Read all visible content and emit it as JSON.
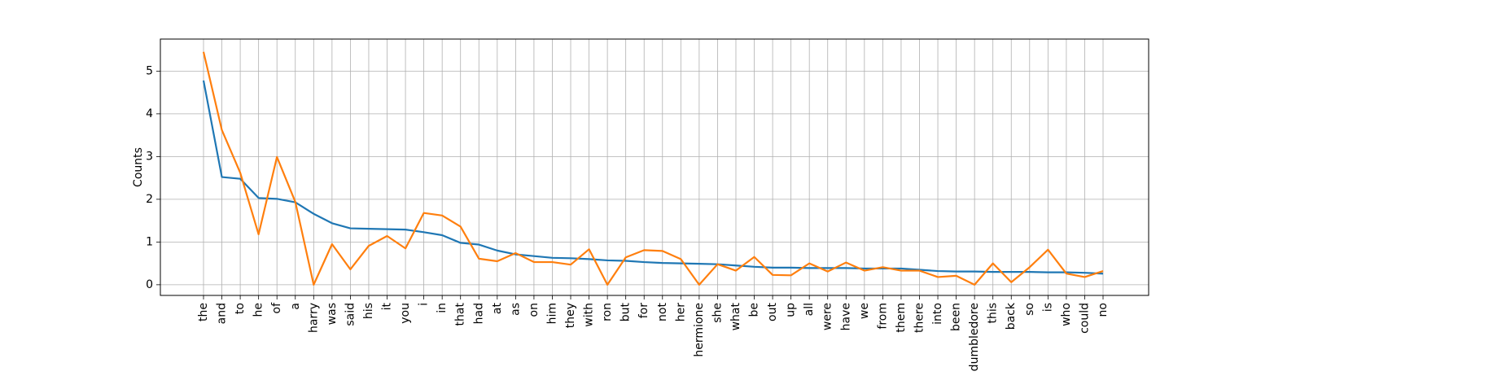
{
  "chart_data": {
    "type": "line",
    "title": "",
    "xlabel": "",
    "ylabel": "Counts",
    "ylim": [
      -0.25,
      5.75
    ],
    "yticks": [
      0,
      1,
      2,
      3,
      4,
      5
    ],
    "grid": true,
    "categories": [
      "the",
      "and",
      "to",
      "he",
      "of",
      "a",
      "harry",
      "was",
      "said",
      "his",
      "it",
      "you",
      "i",
      "in",
      "that",
      "had",
      "at",
      "as",
      "on",
      "him",
      "they",
      "with",
      "ron",
      "but",
      "for",
      "not",
      "her",
      "hermione",
      "she",
      "what",
      "be",
      "out",
      "up",
      "all",
      "were",
      "have",
      "we",
      "from",
      "them",
      "there",
      "into",
      "been",
      "dumbledore",
      "this",
      "back",
      "so",
      "is",
      "who",
      "could",
      "no"
    ],
    "series": [
      {
        "color": "#1f77b4",
        "values": [
          4.78,
          2.52,
          2.48,
          2.03,
          2.01,
          1.93,
          1.66,
          1.44,
          1.32,
          1.31,
          1.3,
          1.29,
          1.23,
          1.16,
          0.98,
          0.94,
          0.8,
          0.71,
          0.67,
          0.63,
          0.62,
          0.6,
          0.57,
          0.56,
          0.53,
          0.51,
          0.5,
          0.49,
          0.48,
          0.45,
          0.42,
          0.4,
          0.4,
          0.39,
          0.39,
          0.39,
          0.38,
          0.38,
          0.38,
          0.35,
          0.32,
          0.31,
          0.31,
          0.3,
          0.3,
          0.3,
          0.29,
          0.29,
          0.28,
          0.26
        ]
      },
      {
        "color": "#ff7f0e",
        "values": [
          5.45,
          3.62,
          2.62,
          1.18,
          2.99,
          1.94,
          0.0,
          0.95,
          0.36,
          0.91,
          1.14,
          0.85,
          1.68,
          1.62,
          1.36,
          0.61,
          0.55,
          0.74,
          0.53,
          0.53,
          0.47,
          0.83,
          0.0,
          0.64,
          0.81,
          0.79,
          0.6,
          0.0,
          0.48,
          0.33,
          0.65,
          0.23,
          0.22,
          0.5,
          0.31,
          0.52,
          0.33,
          0.41,
          0.33,
          0.33,
          0.18,
          0.21,
          0.0,
          0.5,
          0.06,
          0.41,
          0.82,
          0.26,
          0.18,
          0.32
        ]
      }
    ]
  }
}
